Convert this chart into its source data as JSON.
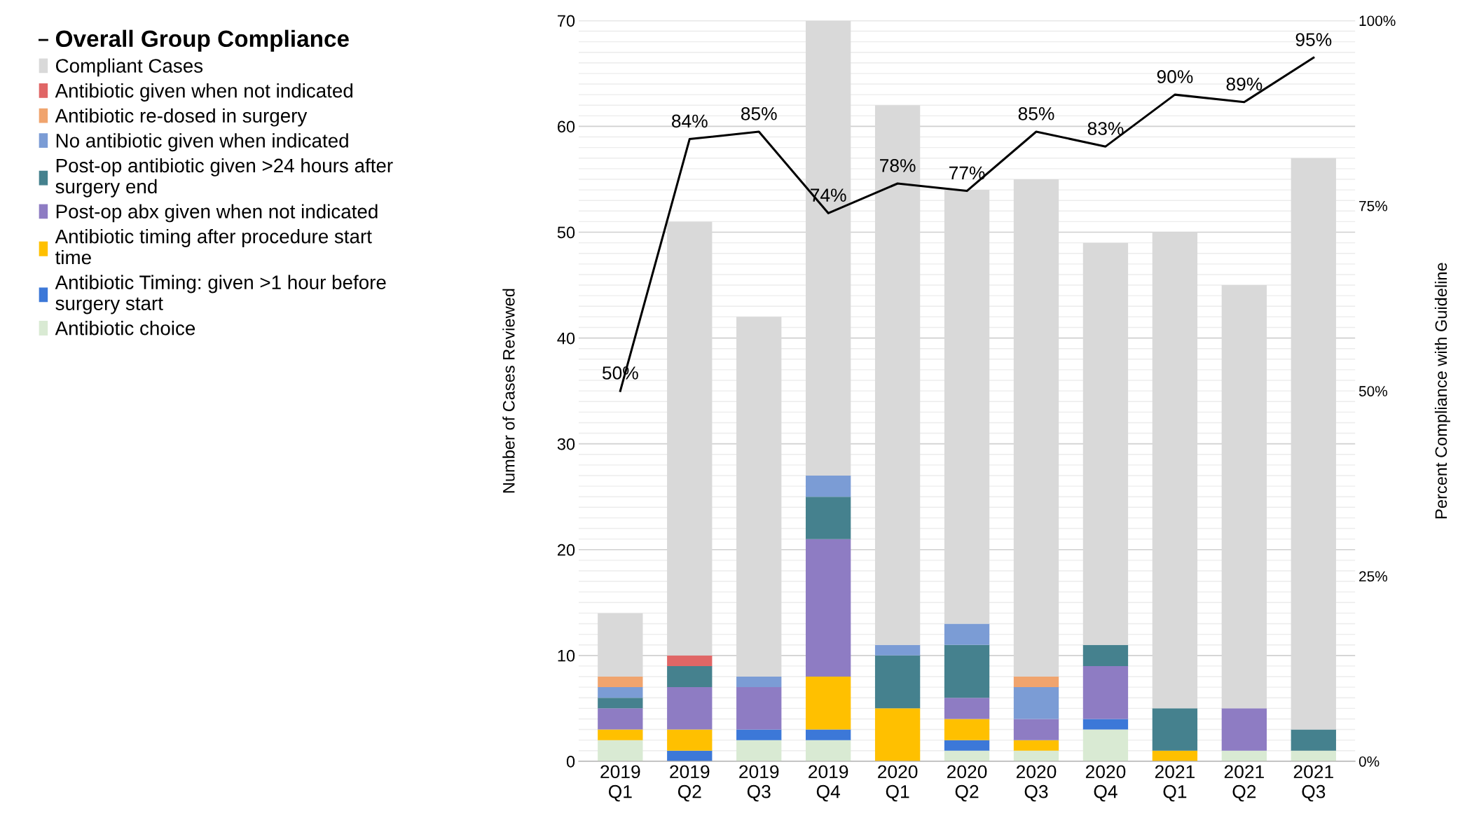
{
  "chart_data": {
    "type": "bar",
    "stacked": true,
    "categories": [
      "2019 Q1",
      "2019 Q2",
      "2019 Q3",
      "2019 Q4",
      "2020 Q1",
      "2020 Q2",
      "2020 Q3",
      "2020 Q4",
      "2021 Q1",
      "2021 Q2",
      "2021 Q3"
    ],
    "series": [
      {
        "name": "Antibiotic choice",
        "color": "#d9ead3",
        "values": [
          2,
          0,
          2,
          2,
          0,
          1,
          1,
          3,
          0,
          1,
          1
        ]
      },
      {
        "name": "Antibiotic Timing: given >1 hour before surgery start",
        "color": "#3c78d8",
        "values": [
          0,
          1,
          1,
          1,
          0,
          1,
          0,
          1,
          0,
          0,
          0
        ]
      },
      {
        "name": "Antibiotic timing after procedure start time",
        "color": "#ffc000",
        "values": [
          1,
          2,
          0,
          5,
          5,
          2,
          1,
          0,
          1,
          0,
          0
        ]
      },
      {
        "name": "Post-op abx given when not indicated",
        "color": "#8e7cc3",
        "values": [
          2,
          4,
          4,
          13,
          0,
          2,
          2,
          5,
          0,
          4,
          0
        ]
      },
      {
        "name": "Post-op antibiotic given >24 hours after surgery end",
        "color": "#45818e",
        "values": [
          1,
          2,
          0,
          4,
          5,
          5,
          0,
          2,
          4,
          0,
          2
        ]
      },
      {
        "name": "No antibiotic given when indicated",
        "color": "#7b9cd5",
        "values": [
          1,
          0,
          1,
          2,
          1,
          2,
          3,
          0,
          0,
          0,
          0
        ]
      },
      {
        "name": "Antibiotic re-dosed in surgery",
        "color": "#f0a46e",
        "values": [
          1,
          0,
          0,
          0,
          0,
          0,
          1,
          0,
          0,
          0,
          0
        ]
      },
      {
        "name": "Antibiotic given when not indicated",
        "color": "#e06666",
        "values": [
          0,
          1,
          0,
          0,
          0,
          0,
          0,
          0,
          0,
          0,
          0
        ]
      },
      {
        "name": "Compliant Cases",
        "color": "#d9d9d9",
        "values": [
          6,
          41,
          34,
          43,
          51,
          41,
          47,
          38,
          45,
          40,
          54
        ]
      },
      {
        "name": "Overall Group Compliance",
        "type": "line",
        "axis": "y2",
        "color": "#000000",
        "data_labels": true,
        "value_labels": [
          "50%",
          "84%",
          "85%",
          "74%",
          "78%",
          "77%",
          "85%",
          "83%",
          "90%",
          "89%",
          "95%"
        ],
        "values": [
          50,
          84,
          85,
          74,
          78,
          77,
          85,
          83,
          90,
          89,
          95
        ]
      }
    ],
    "ylim": [
      0,
      70
    ],
    "yticks": [
      0,
      10,
      20,
      30,
      40,
      50,
      60,
      70
    ],
    "y2lim": [
      0,
      100
    ],
    "y2ticks": [
      {
        "value": 0,
        "label": "0%"
      },
      {
        "value": 25,
        "label": "25%"
      },
      {
        "value": 50,
        "label": "50%"
      },
      {
        "value": 75,
        "label": "75%"
      },
      {
        "value": 100,
        "label": "100%"
      }
    ],
    "ylabel": "Number of Cases Reviewed",
    "y2label": "Percent Compliance with Guideline",
    "grid": "y",
    "legend": "left",
    "marker": "none",
    "line_style": "solid"
  }
}
